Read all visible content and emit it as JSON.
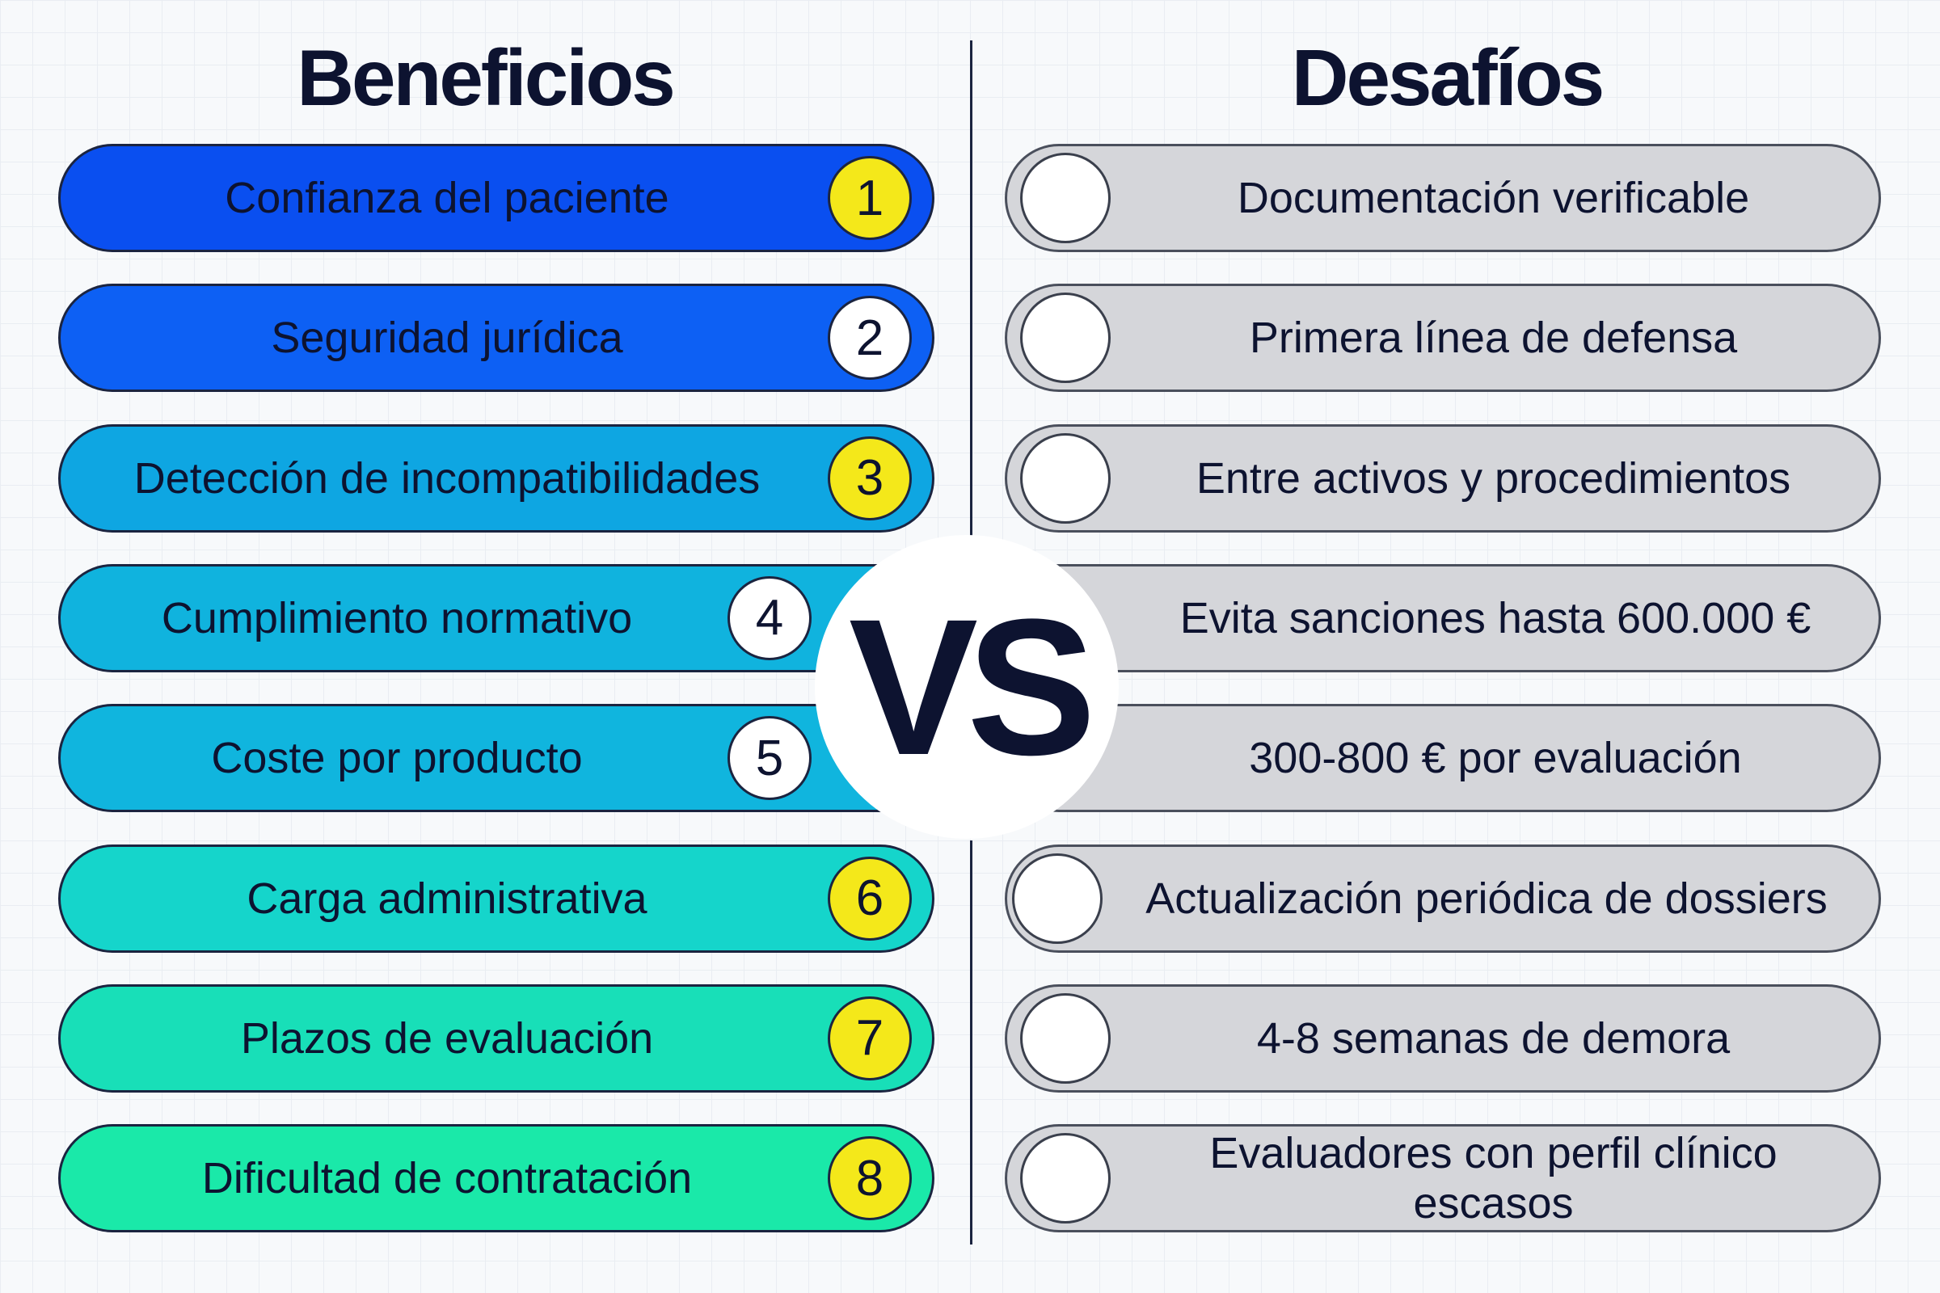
{
  "header": {
    "left_title": "Beneficios",
    "right_title": "Desafíos",
    "versus": "VS"
  },
  "benefits": [
    {
      "number": 1,
      "label": "Confianza del paciente"
    },
    {
      "number": 2,
      "label": "Seguridad jurídica"
    },
    {
      "number": 3,
      "label": "Detección de incompatibilidades"
    },
    {
      "number": 4,
      "label": "Cumplimiento normativo"
    },
    {
      "number": 5,
      "label": "Coste por producto"
    },
    {
      "number": 6,
      "label": "Carga administrativa"
    },
    {
      "number": 7,
      "label": "Plazos de evaluación"
    },
    {
      "number": 8,
      "label": "Dificultad de contratación"
    }
  ],
  "challenges": [
    "Documentación verificable",
    "Primera línea de defensa",
    "Entre activos y procedimientos",
    "Evita sanciones hasta 600.000 €",
    "300-800 € por evaluación",
    "Actualización periódica de dossiers",
    "4-8 semanas de demora",
    "Evaluadores con perfil clínico escasos"
  ]
}
